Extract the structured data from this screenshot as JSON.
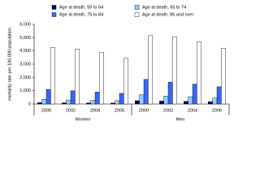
{
  "chart_data": {
    "type": "bar",
    "y_label": "mortality rate per 100,000 population",
    "categories": [
      "2000",
      "2002",
      "2004",
      "2006",
      "2000",
      "2002",
      "2004",
      "2006"
    ],
    "groups": [
      "Women",
      "Men"
    ],
    "series": [
      {
        "name": "Age at death, 55 to 64",
        "color": "#000066",
        "values": [
          100,
          90,
          80,
          70,
          250,
          220,
          200,
          180
        ]
      },
      {
        "name": "Age at death, 65 to 74",
        "color": "#99ccff",
        "values": [
          350,
          300,
          280,
          250,
          700,
          600,
          550,
          450
        ]
      },
      {
        "name": "Age at death, 75 to 84",
        "color": "#3366ff",
        "values": [
          1100,
          1000,
          900,
          800,
          1850,
          1650,
          1500,
          1300
        ]
      },
      {
        "name": "Age at death, 85 and over",
        "color": "#ffffff",
        "values": [
          4250,
          4150,
          3900,
          3450,
          5150,
          5050,
          4700,
          4200
        ]
      }
    ],
    "ylim": [
      0,
      6000
    ],
    "yticks": [
      0,
      {
        "value": 1000,
        "label": "1,000"
      },
      {
        "value": 2000,
        "label": "2,000"
      },
      {
        "value": 3000,
        "label": "3,000"
      },
      {
        "value": 4000,
        "label": "4,000"
      },
      {
        "value": 5000,
        "label": "5,000"
      },
      {
        "value": 6000,
        "label": "6,000"
      }
    ]
  }
}
